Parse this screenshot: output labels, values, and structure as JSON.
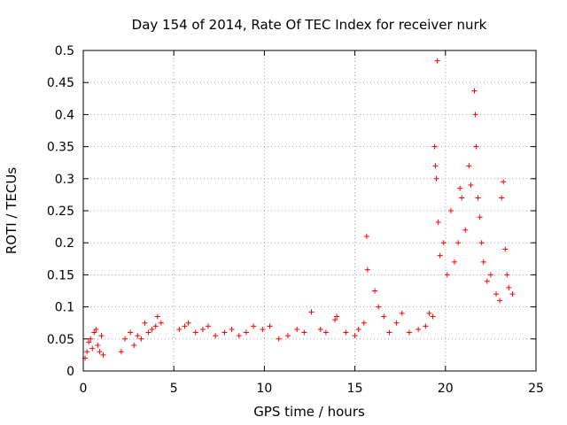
{
  "chart_data": {
    "type": "scatter",
    "title": "Day 154 of 2014, Rate Of TEC Index for receiver nurk",
    "xlabel": "GPS time / hours",
    "ylabel": "ROTI / TECUs",
    "xlim": [
      0,
      25
    ],
    "ylim": [
      0,
      0.5
    ],
    "xticks": [
      0,
      5,
      10,
      15,
      20,
      25
    ],
    "yticks": [
      0,
      0.05,
      0.1,
      0.15,
      0.2,
      0.25,
      0.3,
      0.35,
      0.4,
      0.45,
      0.5
    ],
    "xtick_labels": [
      "0",
      "5",
      "10",
      "15",
      "20",
      "25"
    ],
    "ytick_labels": [
      "0",
      "0.05",
      "0.1",
      "0.15",
      "0.2",
      "0.25",
      "0.3",
      "0.35",
      "0.4",
      "0.45",
      "0.5"
    ],
    "grid": true,
    "marker": "+",
    "color": "#ff0000",
    "series": [
      {
        "name": "ROTI",
        "points": [
          [
            0.1,
            0.02
          ],
          [
            0.2,
            0.03
          ],
          [
            0.3,
            0.045
          ],
          [
            0.4,
            0.05
          ],
          [
            0.5,
            0.035
          ],
          [
            0.6,
            0.06
          ],
          [
            0.7,
            0.065
          ],
          [
            0.8,
            0.04
          ],
          [
            0.9,
            0.03
          ],
          [
            1.0,
            0.055
          ],
          [
            1.1,
            0.025
          ],
          [
            2.1,
            0.03
          ],
          [
            2.3,
            0.05
          ],
          [
            2.6,
            0.06
          ],
          [
            2.8,
            0.04
          ],
          [
            3.0,
            0.055
          ],
          [
            3.2,
            0.05
          ],
          [
            3.4,
            0.075
          ],
          [
            3.6,
            0.06
          ],
          [
            3.8,
            0.065
          ],
          [
            4.0,
            0.07
          ],
          [
            4.1,
            0.085
          ],
          [
            4.3,
            0.075
          ],
          [
            5.3,
            0.065
          ],
          [
            5.6,
            0.07
          ],
          [
            5.8,
            0.075
          ],
          [
            6.2,
            0.06
          ],
          [
            6.6,
            0.065
          ],
          [
            6.9,
            0.07
          ],
          [
            7.3,
            0.055
          ],
          [
            7.8,
            0.06
          ],
          [
            8.2,
            0.065
          ],
          [
            8.6,
            0.055
          ],
          [
            9.0,
            0.06
          ],
          [
            9.4,
            0.07
          ],
          [
            9.9,
            0.065
          ],
          [
            10.3,
            0.07
          ],
          [
            10.8,
            0.05
          ],
          [
            11.3,
            0.055
          ],
          [
            11.8,
            0.065
          ],
          [
            12.2,
            0.06
          ],
          [
            12.6,
            0.092
          ],
          [
            13.1,
            0.065
          ],
          [
            13.4,
            0.06
          ],
          [
            13.9,
            0.08
          ],
          [
            14.0,
            0.085
          ],
          [
            14.5,
            0.06
          ],
          [
            15.0,
            0.055
          ],
          [
            15.2,
            0.065
          ],
          [
            15.5,
            0.075
          ],
          [
            15.65,
            0.21
          ],
          [
            15.7,
            0.158
          ],
          [
            16.1,
            0.125
          ],
          [
            16.3,
            0.1
          ],
          [
            16.6,
            0.085
          ],
          [
            16.9,
            0.06
          ],
          [
            17.3,
            0.075
          ],
          [
            17.6,
            0.09
          ],
          [
            18.0,
            0.06
          ],
          [
            18.5,
            0.065
          ],
          [
            18.9,
            0.07
          ],
          [
            19.1,
            0.09
          ],
          [
            19.3,
            0.085
          ],
          [
            19.4,
            0.35
          ],
          [
            19.45,
            0.32
          ],
          [
            19.5,
            0.3
          ],
          [
            19.55,
            0.484
          ],
          [
            19.6,
            0.232
          ],
          [
            19.7,
            0.18
          ],
          [
            19.9,
            0.2
          ],
          [
            20.1,
            0.15
          ],
          [
            20.3,
            0.25
          ],
          [
            20.5,
            0.17
          ],
          [
            20.7,
            0.2
          ],
          [
            20.8,
            0.285
          ],
          [
            20.9,
            0.27
          ],
          [
            21.1,
            0.22
          ],
          [
            21.3,
            0.32
          ],
          [
            21.4,
            0.29
          ],
          [
            21.6,
            0.437
          ],
          [
            21.65,
            0.4
          ],
          [
            21.7,
            0.35
          ],
          [
            21.8,
            0.27
          ],
          [
            21.9,
            0.24
          ],
          [
            22.0,
            0.2
          ],
          [
            22.1,
            0.17
          ],
          [
            22.3,
            0.14
          ],
          [
            22.5,
            0.15
          ],
          [
            22.8,
            0.12
          ],
          [
            23.0,
            0.11
          ],
          [
            23.1,
            0.27
          ],
          [
            23.2,
            0.295
          ],
          [
            23.3,
            0.19
          ],
          [
            23.4,
            0.15
          ],
          [
            23.5,
            0.13
          ],
          [
            23.7,
            0.12
          ]
        ]
      }
    ]
  }
}
